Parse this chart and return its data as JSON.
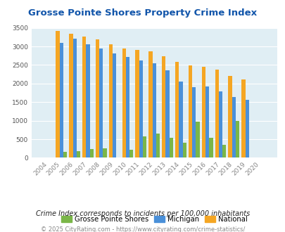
{
  "title": "Grosse Pointe Shores Property Crime Index",
  "years": [
    2004,
    2005,
    2006,
    2007,
    2008,
    2009,
    2010,
    2011,
    2012,
    2013,
    2014,
    2015,
    2016,
    2017,
    2018,
    2019,
    2020
  ],
  "grosse_pointe": [
    0,
    150,
    180,
    230,
    250,
    0,
    225,
    570,
    650,
    540,
    400,
    980,
    530,
    340,
    1000,
    0,
    0
  ],
  "michigan": [
    0,
    3100,
    3200,
    3050,
    2950,
    2820,
    2720,
    2620,
    2540,
    2350,
    2050,
    1900,
    1920,
    1790,
    1640,
    1570,
    0
  ],
  "national": [
    0,
    3420,
    3340,
    3260,
    3190,
    3050,
    2950,
    2900,
    2860,
    2730,
    2590,
    2490,
    2460,
    2370,
    2200,
    2110,
    0
  ],
  "grosse_pointe_color": "#7ab648",
  "michigan_color": "#4a90d9",
  "national_color": "#f5a623",
  "plot_bg_color": "#e0eef4",
  "title_color": "#1155aa",
  "ylabel_max": 3500,
  "yticks": [
    0,
    500,
    1000,
    1500,
    2000,
    2500,
    3000,
    3500
  ],
  "subtitle": "Crime Index corresponds to incidents per 100,000 inhabitants",
  "footer": "© 2025 CityRating.com - https://www.cityrating.com/crime-statistics/",
  "legend_labels": [
    "Grosse Pointe Shores",
    "Michigan",
    "National"
  ]
}
